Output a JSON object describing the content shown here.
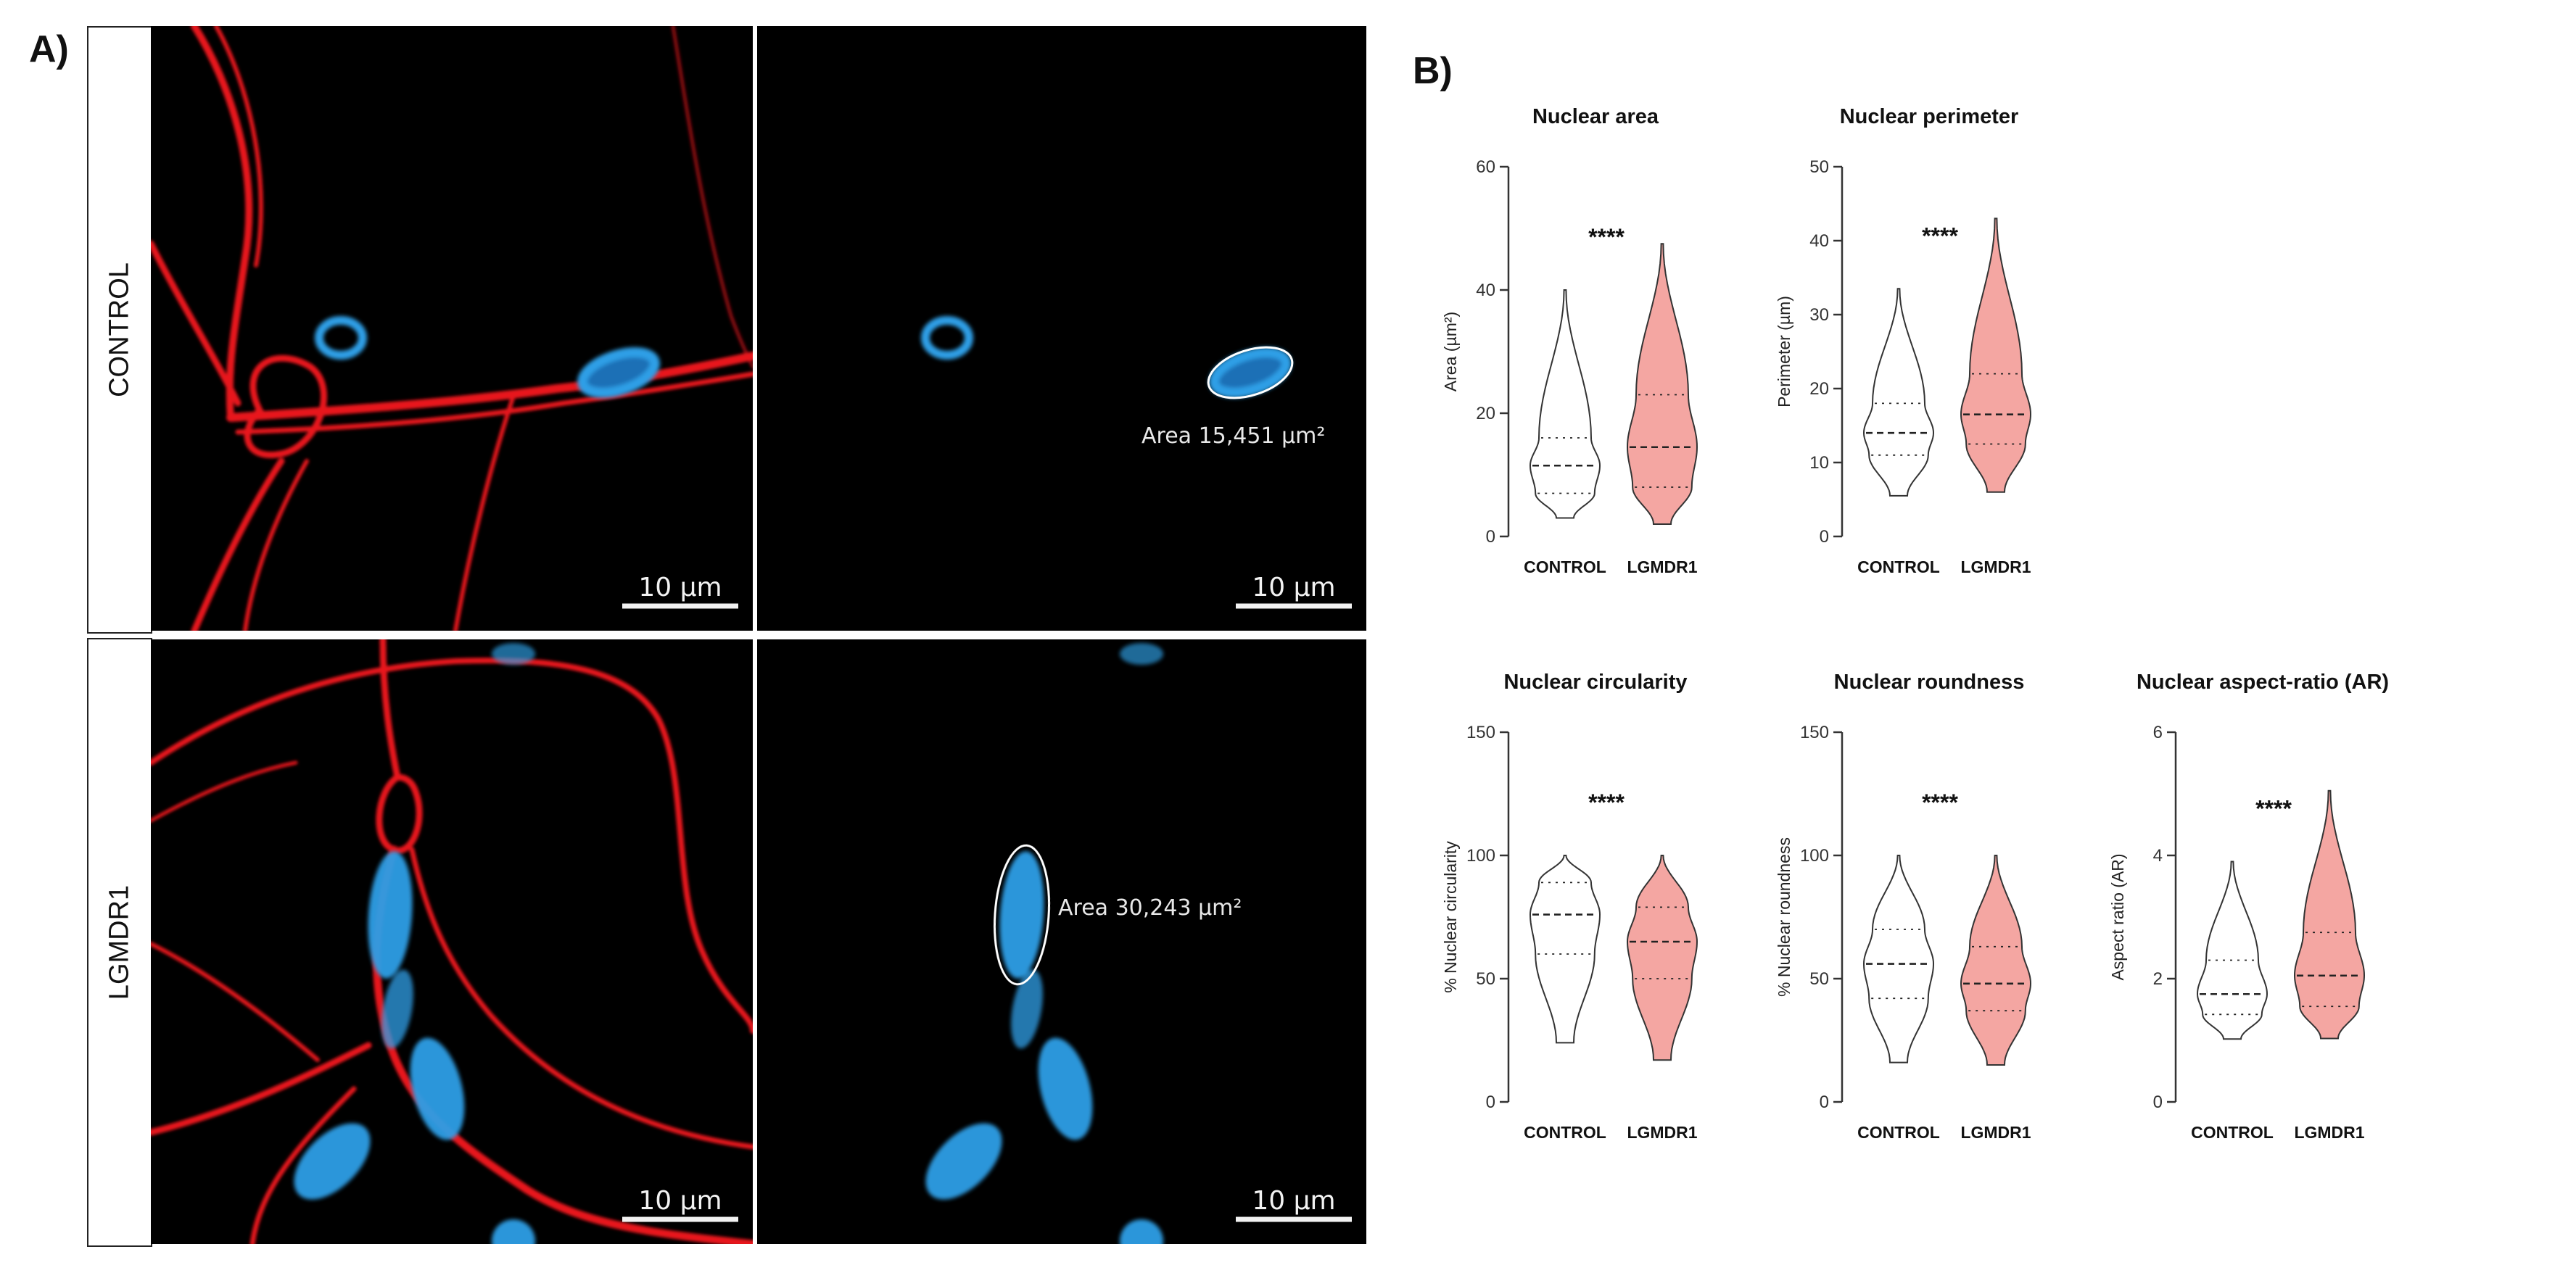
{
  "panel_a": {
    "label": "A)",
    "rows": [
      {
        "label": "CONTROL",
        "merged_scalebar": "10 µm",
        "dapi_scalebar": "10 µm",
        "area_annotation": "Area 15,451 µm²"
      },
      {
        "label": "LGMDR1",
        "merged_scalebar": "10 µm",
        "dapi_scalebar": "10 µm",
        "area_annotation": "Area 30,243 µm²"
      }
    ]
  },
  "panel_b": {
    "label": "B)"
  },
  "colors": {
    "control_fill": "#ffffff",
    "lgmdr1_fill": "#f4a6a2",
    "membrane": "#e8151d",
    "nuclei": "#2f9fe6"
  },
  "chart_data": [
    {
      "type": "violin",
      "title": "Nuclear area",
      "ylabel": "Area (µm²)",
      "ylim": [
        0,
        60
      ],
      "yticks": [
        0,
        20,
        40,
        60
      ],
      "categories": [
        "CONTROL",
        "LGMDR1"
      ],
      "significance": "****",
      "series": [
        {
          "name": "CONTROL",
          "min": 3,
          "q1": 7,
          "median": 11.5,
          "q3": 16,
          "max": 40
        },
        {
          "name": "LGMDR1",
          "min": 2,
          "q1": 8,
          "median": 14.5,
          "q3": 23,
          "max": 47.5
        }
      ]
    },
    {
      "type": "violin",
      "title": "Nuclear perimeter",
      "ylabel": "Perimeter (µm)",
      "ylim": [
        0,
        50
      ],
      "yticks": [
        0,
        10,
        20,
        30,
        40,
        50
      ],
      "categories": [
        "CONTROL",
        "LGMDR1"
      ],
      "significance": "****",
      "series": [
        {
          "name": "CONTROL",
          "min": 5.5,
          "q1": 11,
          "median": 14,
          "q3": 18,
          "max": 33.5
        },
        {
          "name": "LGMDR1",
          "min": 6,
          "q1": 12.5,
          "median": 16.5,
          "q3": 22,
          "max": 43
        }
      ]
    },
    {
      "type": "violin",
      "title": "Nuclear circularity",
      "ylabel": "% Nuclear circularity",
      "ylim": [
        0,
        150
      ],
      "yticks": [
        0,
        50,
        100,
        150
      ],
      "categories": [
        "CONTROL",
        "LGMDR1"
      ],
      "significance": "****",
      "series": [
        {
          "name": "CONTROL",
          "min": 24,
          "q1": 60,
          "median": 76,
          "q3": 89,
          "max": 100
        },
        {
          "name": "LGMDR1",
          "min": 17,
          "q1": 50,
          "median": 65,
          "q3": 79,
          "max": 100
        }
      ]
    },
    {
      "type": "violin",
      "title": "Nuclear roundness",
      "ylabel": "% Nuclear roundness",
      "ylim": [
        0,
        150
      ],
      "yticks": [
        0,
        50,
        100,
        150
      ],
      "categories": [
        "CONTROL",
        "LGMDR1"
      ],
      "significance": "****",
      "series": [
        {
          "name": "CONTROL",
          "min": 16,
          "q1": 42,
          "median": 56,
          "q3": 70,
          "max": 100
        },
        {
          "name": "LGMDR1",
          "min": 15,
          "q1": 37,
          "median": 48,
          "q3": 63,
          "max": 100
        }
      ]
    },
    {
      "type": "violin",
      "title": "Nuclear aspect-ratio (AR)",
      "ylabel": "Aspect ratio (AR)",
      "ylim": [
        0,
        6
      ],
      "yticks": [
        0,
        2,
        4,
        6
      ],
      "categories": [
        "CONTROL",
        "LGMDR1"
      ],
      "significance": "****",
      "series": [
        {
          "name": "CONTROL",
          "min": 1.02,
          "q1": 1.42,
          "median": 1.75,
          "q3": 2.3,
          "max": 3.9
        },
        {
          "name": "LGMDR1",
          "min": 1.03,
          "q1": 1.55,
          "median": 2.05,
          "q3": 2.75,
          "max": 5.05
        }
      ]
    }
  ]
}
